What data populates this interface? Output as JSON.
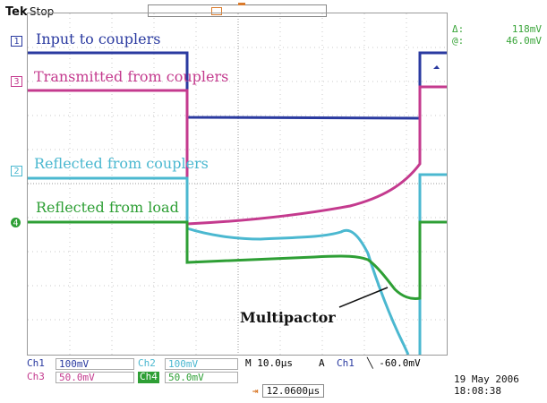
{
  "header": {
    "brand": "Tek",
    "status": "Stop"
  },
  "cursors": {
    "delta_symbol": "Δ:",
    "delta_value": "118mV",
    "at_symbol": "@:",
    "at_value": "46.0mV"
  },
  "traces": {
    "ch1": {
      "label": "Input to couplers",
      "marker": "1",
      "color": "#2a3aa0"
    },
    "ch3": {
      "label": "Transmitted from couplers",
      "marker": "3",
      "color": "#c43a8e"
    },
    "ch2": {
      "label": "Reflected from couplers",
      "marker": "2",
      "color": "#4bb8d0"
    },
    "ch4": {
      "label": "Reflected from load",
      "marker": "4",
      "color": "#2e9f35"
    }
  },
  "annotation": {
    "multipactor": "Multipactor"
  },
  "settings": {
    "ch1_name": "Ch1",
    "ch1_scale": "100mV",
    "ch2_name": "Ch2",
    "ch2_scale": "100mV",
    "ch3_name": "Ch3",
    "ch3_scale": "50.0mV",
    "ch4_name": "Ch4",
    "ch4_scale": "50.0mV",
    "timebase": "M 10.0μs",
    "trigger_mode": "A",
    "trigger_source": "Ch1",
    "trigger_level": "╲ -60.0mV",
    "trigger_position": "12.0600μs"
  },
  "datetime": {
    "date": "19 May 2006",
    "time": "18:08:38"
  }
}
